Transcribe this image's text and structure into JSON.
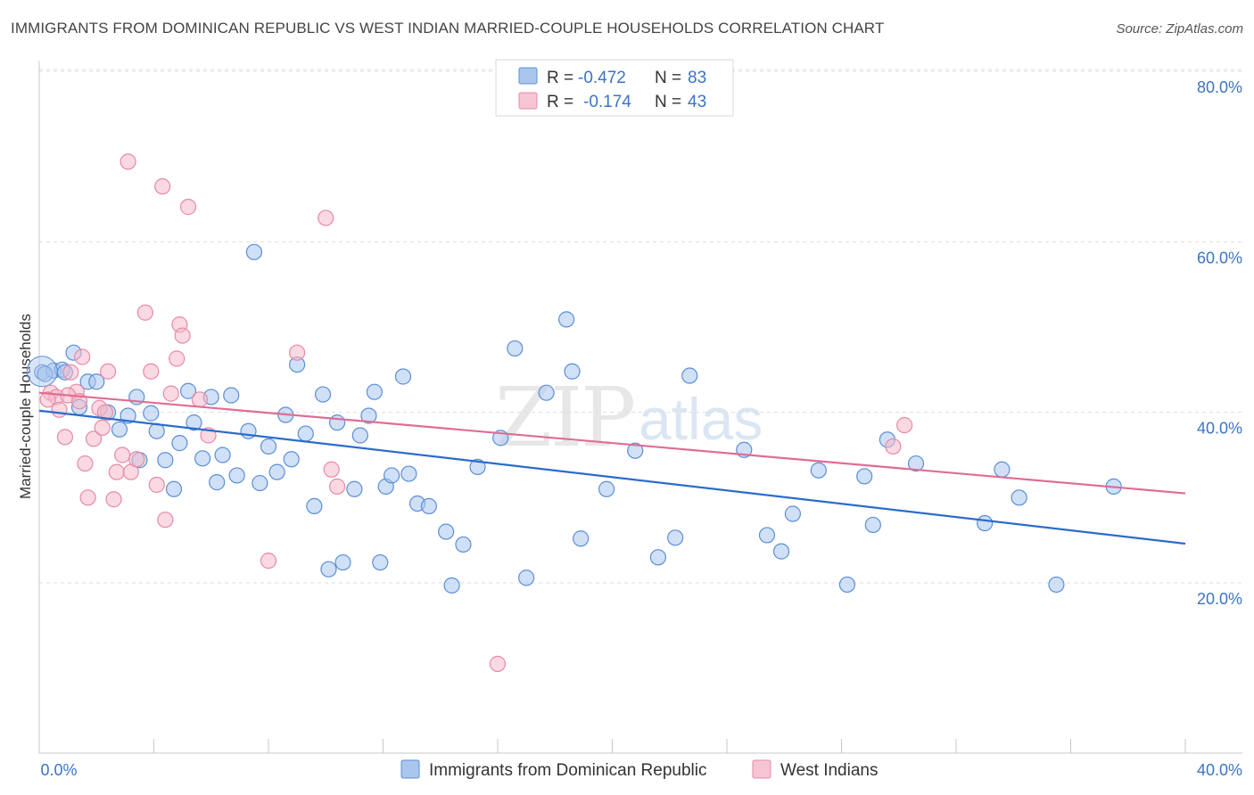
{
  "title": "IMMIGRANTS FROM DOMINICAN REPUBLIC VS WEST INDIAN MARRIED-COUPLE HOUSEHOLDS CORRELATION CHART",
  "source": "Source: ZipAtlas.com",
  "watermark": {
    "zip": "ZIP",
    "atlas": "atlas"
  },
  "colors": {
    "blue_fill": "#a9c6ee",
    "blue_stroke": "#5b8fd6",
    "blue_line": "#2a6ccc",
    "pink_fill": "#f6b9cb",
    "pink_stroke": "#e68aa6",
    "pink_line": "#e06c94",
    "grid": "#dedede",
    "axis_text": "#3c74c4"
  },
  "legend": {
    "rows": [
      {
        "r_label": "R =",
        "r_value": "-0.472",
        "n_label": "N =",
        "n_value": "83"
      },
      {
        "r_label": "R =",
        "r_value": "-0.174",
        "n_label": "N =",
        "n_value": "43"
      }
    ]
  },
  "bottom_legend": [
    "Immigrants from Dominican Republic",
    "West Indians"
  ],
  "chart_data": {
    "type": "scatter",
    "title": "IMMIGRANTS FROM DOMINICAN REPUBLIC VS WEST INDIAN MARRIED-COUPLE HOUSEHOLDS CORRELATION CHART",
    "xlabel": "",
    "ylabel": "Married-couple Households",
    "xlim": [
      0,
      40
    ],
    "ylim": [
      0,
      84
    ],
    "x_tick_labels": [
      "0.0%",
      "40.0%"
    ],
    "y_ticks": [
      20,
      40,
      60,
      80
    ],
    "y_tick_labels": [
      "20.0%",
      "40.0%",
      "60.0%",
      "80.0%"
    ],
    "series": [
      {
        "name": "Immigrants from Dominican Republic",
        "color": "blue",
        "R": -0.472,
        "N": 83,
        "trend": {
          "x": [
            0,
            40
          ],
          "y": [
            40.2,
            24.6
          ]
        },
        "points": [
          [
            0.1,
            44.7
          ],
          [
            0.5,
            44.9
          ],
          [
            0.8,
            45.0
          ],
          [
            0.9,
            44.7
          ],
          [
            1.2,
            47.0
          ],
          [
            1.4,
            40.6
          ],
          [
            1.7,
            43.6
          ],
          [
            2.0,
            43.6
          ],
          [
            2.4,
            40.0
          ],
          [
            2.8,
            38.0
          ],
          [
            3.1,
            39.6
          ],
          [
            3.4,
            41.8
          ],
          [
            3.5,
            34.4
          ],
          [
            3.9,
            39.9
          ],
          [
            4.1,
            37.8
          ],
          [
            4.4,
            34.4
          ],
          [
            4.7,
            31.0
          ],
          [
            4.9,
            36.4
          ],
          [
            5.2,
            42.5
          ],
          [
            5.4,
            38.8
          ],
          [
            5.7,
            34.6
          ],
          [
            6.0,
            41.8
          ],
          [
            6.2,
            31.8
          ],
          [
            6.4,
            35.0
          ],
          [
            6.7,
            42.0
          ],
          [
            6.9,
            32.6
          ],
          [
            7.3,
            37.8
          ],
          [
            7.5,
            58.8
          ],
          [
            7.7,
            31.7
          ],
          [
            8.0,
            36.0
          ],
          [
            8.3,
            33.0
          ],
          [
            8.6,
            39.7
          ],
          [
            8.8,
            34.5
          ],
          [
            9.0,
            45.6
          ],
          [
            9.3,
            37.5
          ],
          [
            9.6,
            29.0
          ],
          [
            9.9,
            42.1
          ],
          [
            10.1,
            21.6
          ],
          [
            10.4,
            38.8
          ],
          [
            10.6,
            22.4
          ],
          [
            11.0,
            31.0
          ],
          [
            11.2,
            37.3
          ],
          [
            11.5,
            39.6
          ],
          [
            11.7,
            42.4
          ],
          [
            11.9,
            22.4
          ],
          [
            12.1,
            31.3
          ],
          [
            12.3,
            32.6
          ],
          [
            12.7,
            44.2
          ],
          [
            12.9,
            32.8
          ],
          [
            13.2,
            29.3
          ],
          [
            13.6,
            29.0
          ],
          [
            14.2,
            26.0
          ],
          [
            14.8,
            24.5
          ],
          [
            14.4,
            19.7
          ],
          [
            15.3,
            33.6
          ],
          [
            16.1,
            37.0
          ],
          [
            16.6,
            47.5
          ],
          [
            17.0,
            20.6
          ],
          [
            17.7,
            42.3
          ],
          [
            18.4,
            50.9
          ],
          [
            18.6,
            44.8
          ],
          [
            18.9,
            25.2
          ],
          [
            19.8,
            31.0
          ],
          [
            20.8,
            35.5
          ],
          [
            21.6,
            23.0
          ],
          [
            22.2,
            25.3
          ],
          [
            22.7,
            44.3
          ],
          [
            24.6,
            35.6
          ],
          [
            25.4,
            25.6
          ],
          [
            25.9,
            23.7
          ],
          [
            26.3,
            28.1
          ],
          [
            27.2,
            33.2
          ],
          [
            28.2,
            19.8
          ],
          [
            28.8,
            32.5
          ],
          [
            29.1,
            26.8
          ],
          [
            29.6,
            36.8
          ],
          [
            30.6,
            34.0
          ],
          [
            33.0,
            27.0
          ],
          [
            33.6,
            33.3
          ],
          [
            34.2,
            30.0
          ],
          [
            35.5,
            19.8
          ],
          [
            37.5,
            31.3
          ],
          [
            0.2,
            44.5
          ]
        ]
      },
      {
        "name": "West Indians",
        "color": "pink",
        "R": -0.174,
        "N": 43,
        "trend": {
          "x": [
            0,
            40
          ],
          "y": [
            42.3,
            30.5
          ]
        },
        "points": [
          [
            0.4,
            42.3
          ],
          [
            0.6,
            41.8
          ],
          [
            0.7,
            40.3
          ],
          [
            0.9,
            37.1
          ],
          [
            1.1,
            44.7
          ],
          [
            1.3,
            42.4
          ],
          [
            1.5,
            46.5
          ],
          [
            1.6,
            34.0
          ],
          [
            1.7,
            30.0
          ],
          [
            1.9,
            36.9
          ],
          [
            2.1,
            40.5
          ],
          [
            2.2,
            38.2
          ],
          [
            2.4,
            44.8
          ],
          [
            2.6,
            29.8
          ],
          [
            2.7,
            33.0
          ],
          [
            2.9,
            35.0
          ],
          [
            3.1,
            69.4
          ],
          [
            3.2,
            33.0
          ],
          [
            3.4,
            34.5
          ],
          [
            3.7,
            51.7
          ],
          [
            3.9,
            44.8
          ],
          [
            4.1,
            31.5
          ],
          [
            4.3,
            66.5
          ],
          [
            4.4,
            27.4
          ],
          [
            4.6,
            42.2
          ],
          [
            4.8,
            46.3
          ],
          [
            4.9,
            50.3
          ],
          [
            5.0,
            49.0
          ],
          [
            5.2,
            64.1
          ],
          [
            5.6,
            41.5
          ],
          [
            5.9,
            37.3
          ],
          [
            8.0,
            22.6
          ],
          [
            9.0,
            47.0
          ],
          [
            10.0,
            62.8
          ],
          [
            10.2,
            33.3
          ],
          [
            10.4,
            31.3
          ],
          [
            16.0,
            10.5
          ],
          [
            29.8,
            36.0
          ],
          [
            30.2,
            38.5
          ],
          [
            2.3,
            40.0
          ],
          [
            1.0,
            42.0
          ],
          [
            0.3,
            41.5
          ],
          [
            1.4,
            41.3
          ]
        ]
      }
    ]
  }
}
